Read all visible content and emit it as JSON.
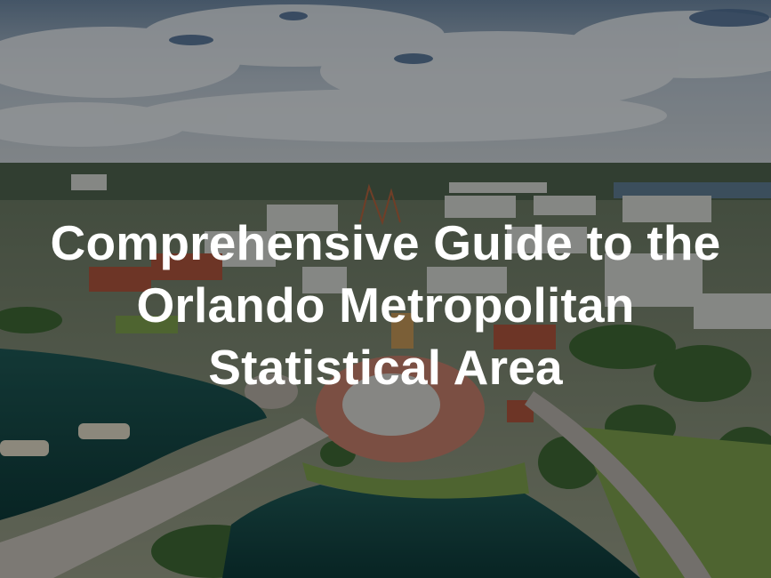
{
  "hero": {
    "title_lines": [
      "Comprehensive Guide to the",
      "Orlando Metropolitan",
      "Statistical Area"
    ]
  }
}
